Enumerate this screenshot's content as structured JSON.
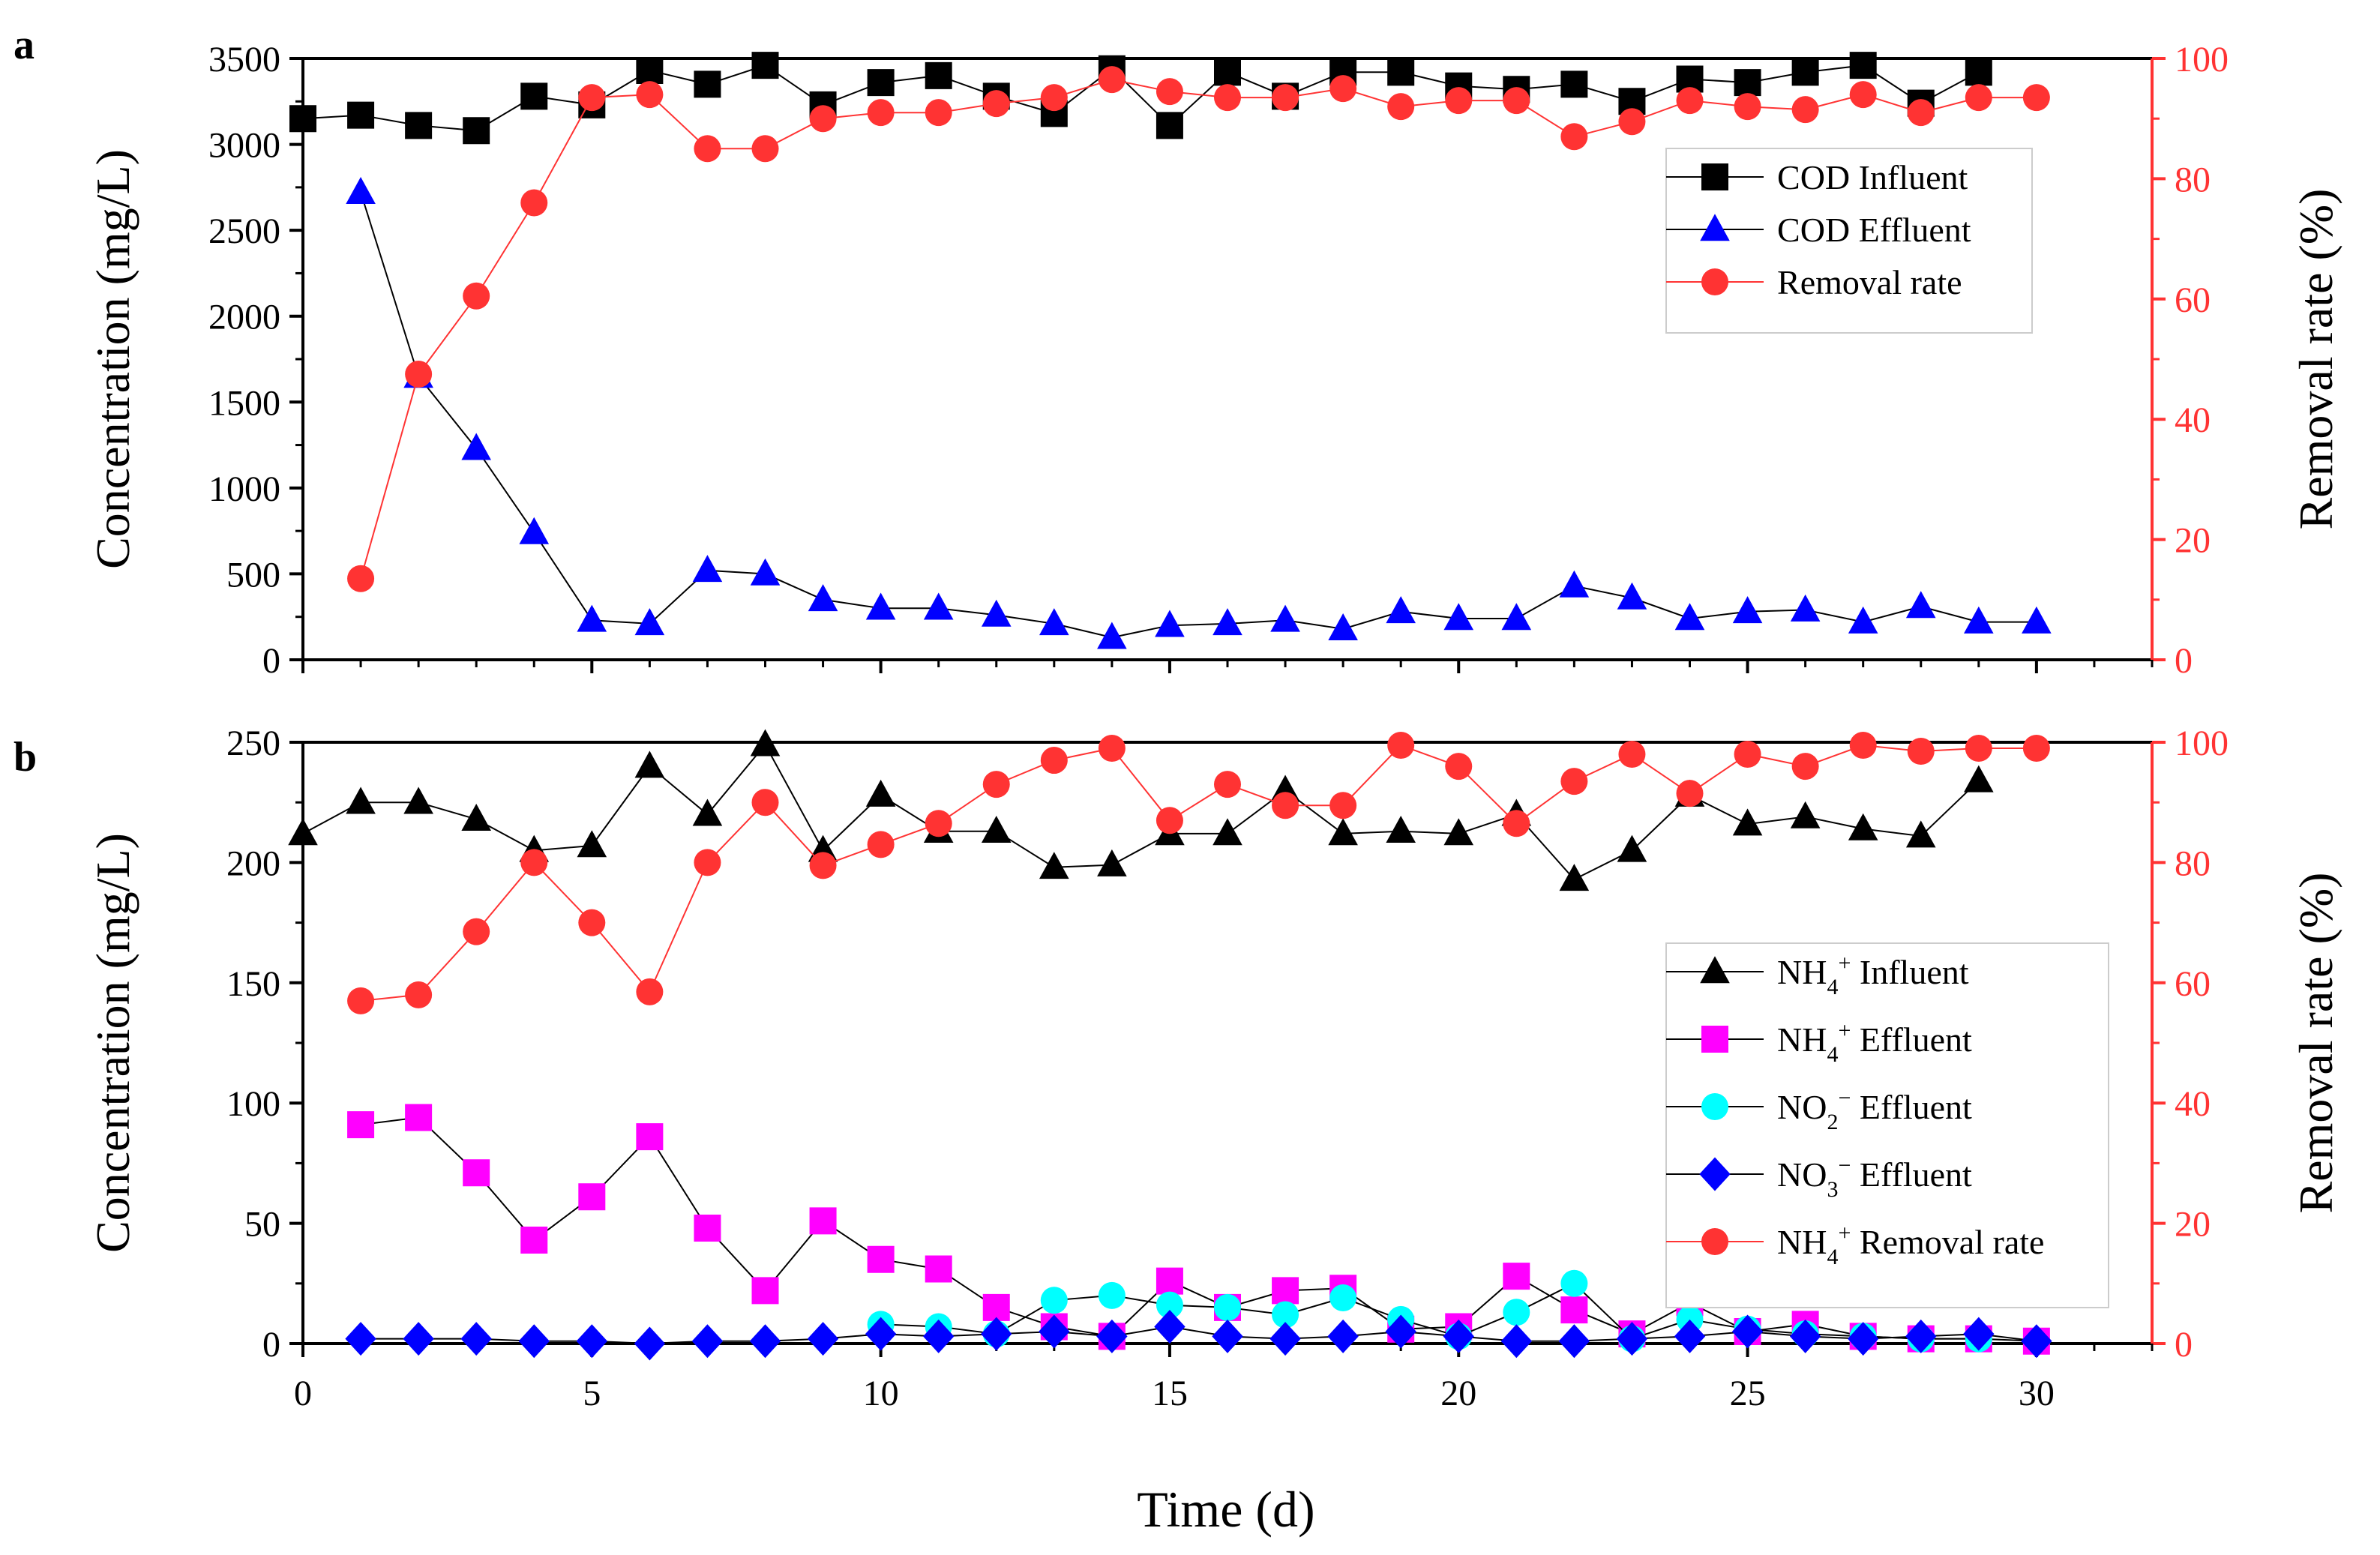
{
  "chart_data": [
    {
      "panel_label": "a",
      "type": "line",
      "xlabel": "",
      "ylabel": "Concentration (mg/L)",
      "y2label": "Removal rate (%)",
      "xlim": [
        0,
        32
      ],
      "ylim": [
        0,
        3500
      ],
      "y2lim": [
        0,
        100
      ],
      "yticks": [
        0,
        500,
        1000,
        1500,
        2000,
        2500,
        3000,
        3500
      ],
      "y2ticks": [
        0,
        20,
        40,
        60,
        80,
        100
      ],
      "legend_position": "top-right",
      "series": [
        {
          "name": "COD  Influent",
          "axis": "left",
          "marker": "square",
          "color": "#000000",
          "line_color": "#000000",
          "x": [
            0,
            1,
            2,
            3,
            4,
            5,
            6,
            7,
            8,
            9,
            10,
            11,
            12,
            13,
            14,
            15,
            16,
            17,
            18,
            19,
            20,
            21,
            22,
            23,
            24,
            25,
            26,
            27,
            28,
            29
          ],
          "y": [
            3150,
            3170,
            3110,
            3080,
            3280,
            3230,
            3430,
            3350,
            3460,
            3230,
            3360,
            3400,
            3280,
            3180,
            3440,
            3110,
            3420,
            3280,
            3420,
            3420,
            3340,
            3320,
            3350,
            3250,
            3380,
            3360,
            3420,
            3460,
            3240,
            3420
          ]
        },
        {
          "name": "COD  Effluent",
          "axis": "left",
          "marker": "triangle",
          "color": "#0000ff",
          "line_color": "#000000",
          "x": [
            1,
            2,
            3,
            4,
            5,
            6,
            7,
            8,
            9,
            10,
            11,
            12,
            13,
            14,
            15,
            16,
            17,
            18,
            19,
            20,
            21,
            22,
            23,
            24,
            25,
            26,
            27,
            28,
            29,
            30
          ],
          "y": [
            2720,
            1650,
            1230,
            740,
            230,
            210,
            520,
            500,
            350,
            300,
            300,
            260,
            210,
            130,
            200,
            210,
            230,
            180,
            280,
            240,
            240,
            430,
            360,
            240,
            280,
            290,
            220,
            310,
            220,
            220
          ]
        },
        {
          "name": "Removal rate",
          "axis": "right",
          "marker": "circle",
          "color": "#ff3333",
          "line_color": "#ff3333",
          "x": [
            1,
            2,
            3,
            4,
            5,
            6,
            7,
            8,
            9,
            10,
            11,
            12,
            13,
            14,
            15,
            16,
            17,
            18,
            19,
            20,
            21,
            22,
            23,
            24,
            25,
            26,
            27,
            28,
            29,
            30
          ],
          "y": [
            13.5,
            47.5,
            60.5,
            76,
            93.5,
            94,
            85,
            85,
            90,
            91,
            91,
            92.5,
            93.5,
            96.5,
            94.5,
            93.5,
            93.5,
            95,
            92,
            93,
            93,
            87,
            89.5,
            93,
            92,
            91.5,
            94,
            91,
            93.5,
            93.5
          ]
        }
      ]
    },
    {
      "panel_label": "b",
      "type": "line",
      "xlabel": "Time (d)",
      "ylabel": "Concentration (mg/L)",
      "y2label": "Removal rate (%)",
      "xlim": [
        0,
        32
      ],
      "ylim": [
        0,
        250
      ],
      "y2lim": [
        0,
        100
      ],
      "xticks": [
        0,
        5,
        10,
        15,
        20,
        25,
        30
      ],
      "yticks": [
        0,
        50,
        100,
        150,
        200,
        250
      ],
      "y2ticks": [
        0,
        20,
        40,
        60,
        80,
        100
      ],
      "legend_position": "right",
      "series": [
        {
          "name": "NH₄⁺ Influent",
          "axis": "left",
          "marker": "triangle",
          "color": "#000000",
          "line_color": "#000000",
          "x": [
            0,
            1,
            2,
            3,
            4,
            5,
            6,
            7,
            8,
            9,
            10,
            11,
            12,
            13,
            14,
            15,
            16,
            17,
            18,
            19,
            20,
            21,
            22,
            23,
            24,
            25,
            26,
            27,
            28,
            29
          ],
          "y": [
            212,
            225,
            225,
            218,
            205,
            207,
            240,
            220,
            249,
            205,
            228,
            213,
            213,
            198,
            199,
            212,
            212,
            230,
            212,
            213,
            212,
            220,
            193,
            205,
            228,
            216,
            219,
            214,
            211,
            234
          ]
        },
        {
          "name": "NH₄⁺ Effluent",
          "axis": "left",
          "marker": "square",
          "color": "#ff00ff",
          "line_color": "#000000",
          "x": [
            1,
            2,
            3,
            4,
            5,
            6,
            7,
            8,
            9,
            10,
            11,
            12,
            13,
            14,
            15,
            16,
            17,
            18,
            19,
            20,
            21,
            22,
            23,
            24,
            25,
            26,
            27,
            28,
            29,
            30
          ],
          "y": [
            91,
            94,
            71,
            43,
            61,
            86,
            48,
            22,
            51,
            35,
            31,
            15,
            7,
            3,
            26,
            15,
            22,
            23,
            6,
            7,
            28,
            14,
            4,
            17,
            5,
            8,
            3,
            2,
            2,
            1
          ]
        },
        {
          "name": "NO₂⁻ Effluent",
          "axis": "left",
          "marker": "circle",
          "color": "#00ffff",
          "line_color": "#000000",
          "x": [
            10,
            11,
            12,
            13,
            14,
            15,
            16,
            17,
            18,
            19,
            20,
            21,
            22,
            23,
            24,
            25,
            26,
            27,
            28,
            29
          ],
          "y": [
            8,
            7,
            4,
            18,
            20,
            16,
            15,
            12,
            19,
            10,
            3,
            13,
            25,
            2,
            10,
            6,
            4,
            3,
            2,
            2
          ]
        },
        {
          "name": "NO₃⁻ Effluent",
          "axis": "left",
          "marker": "diamond",
          "color": "#0000ff",
          "line_color": "#000000",
          "x": [
            1,
            2,
            3,
            4,
            5,
            6,
            7,
            8,
            9,
            10,
            11,
            12,
            13,
            14,
            15,
            16,
            17,
            18,
            19,
            20,
            21,
            22,
            23,
            24,
            25,
            26,
            27,
            28,
            29,
            30
          ],
          "y": [
            2,
            2,
            2,
            1,
            1,
            0,
            1,
            1,
            2,
            4,
            3,
            4,
            5,
            3,
            7,
            3,
            2,
            3,
            5,
            3,
            1,
            1,
            2,
            3,
            5,
            3,
            2,
            3,
            4,
            1
          ]
        },
        {
          "name": "NH₄⁺ Removal rate",
          "axis": "right",
          "marker": "circle",
          "color": "#ff3333",
          "line_color": "#ff3333",
          "x": [
            1,
            2,
            3,
            4,
            5,
            6,
            7,
            8,
            9,
            10,
            11,
            12,
            13,
            14,
            15,
            16,
            17,
            18,
            19,
            20,
            21,
            22,
            23,
            24,
            25,
            26,
            27,
            28,
            29,
            30
          ],
          "y": [
            57,
            58,
            68.5,
            80,
            70,
            58.5,
            80,
            90,
            79.5,
            83,
            86.5,
            93,
            97,
            99,
            87,
            93,
            89.5,
            89.5,
            99.5,
            96,
            86.5,
            93.5,
            98,
            91.5,
            98,
            96,
            99.5,
            98.5,
            99,
            99
          ]
        }
      ]
    }
  ]
}
